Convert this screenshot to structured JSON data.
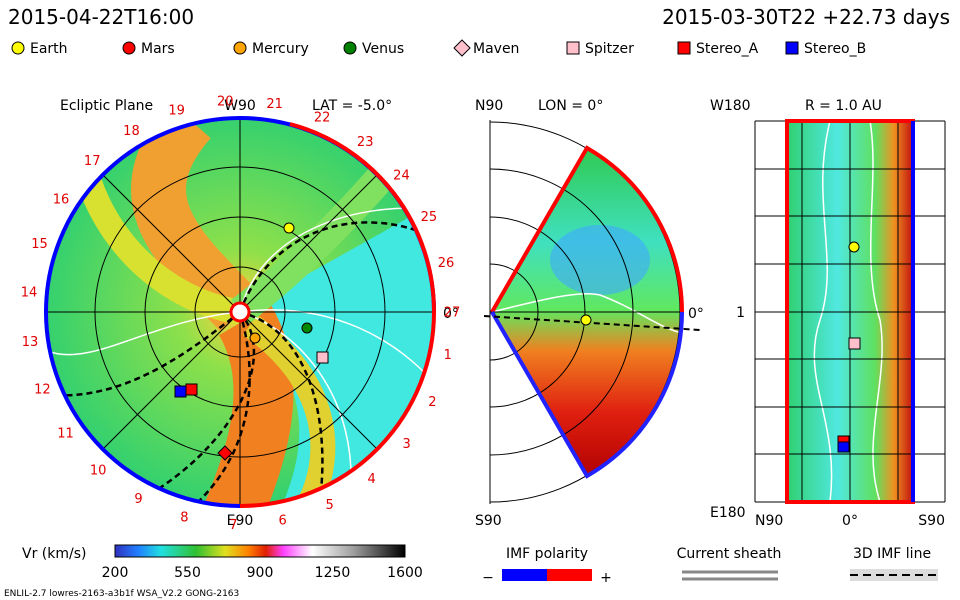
{
  "header": {
    "left": "2015-04-22T16:00",
    "right": "2015-03-30T22  +22.73 days"
  },
  "legend": [
    {
      "name": "Earth",
      "color": "#ffff00",
      "shape": "circle"
    },
    {
      "name": "Mars",
      "color": "#ff0000",
      "shape": "circle"
    },
    {
      "name": "Mercury",
      "color": "#ffa500",
      "shape": "circle"
    },
    {
      "name": "Venus",
      "color": "#008000",
      "shape": "circle"
    },
    {
      "name": "Maven",
      "color": "#ffc0cb",
      "shape": "diamond"
    },
    {
      "name": "Spitzer",
      "color": "#ffc0cb",
      "shape": "square"
    },
    {
      "name": "Stereo_A",
      "color": "#ff0000",
      "shape": "square"
    },
    {
      "name": "Stereo_B",
      "color": "#0000ff",
      "shape": "square"
    }
  ],
  "ecliptic": {
    "title": "Ecliptic Plane",
    "top": "W90",
    "lat": "LAT = -5.0°",
    "bottom": "E90",
    "right": "0°",
    "hours": [
      "1",
      "2",
      "3",
      "4",
      "5",
      "6",
      "7",
      "8",
      "9",
      "10",
      "11",
      "12",
      "13",
      "14",
      "15",
      "16",
      "17",
      "18",
      "19",
      "20",
      "21",
      "22",
      "23",
      "24",
      "25",
      "26",
      "27"
    ]
  },
  "meridional": {
    "top": "N90",
    "lon": "LON = 0°",
    "bottom": "S90",
    "right": "0°"
  },
  "radial": {
    "top": "W180",
    "r": "R = 1.0 AU",
    "left": "1",
    "bottom_left": "E180",
    "x_left": "N90",
    "x_mid": "0°",
    "x_right": "S90"
  },
  "colorbar": {
    "label": "Vr (km/s)",
    "ticks": [
      "200",
      "550",
      "900",
      "1250",
      "1600"
    ]
  },
  "footer": {
    "imf": "IMF polarity",
    "minus": "−",
    "plus": "+",
    "sheath": "Current sheath",
    "line": "3D IMF line",
    "version": "ENLIL-2.7 lowres-2163-a3b1f WSA_V2.2 GONG-2163"
  }
}
